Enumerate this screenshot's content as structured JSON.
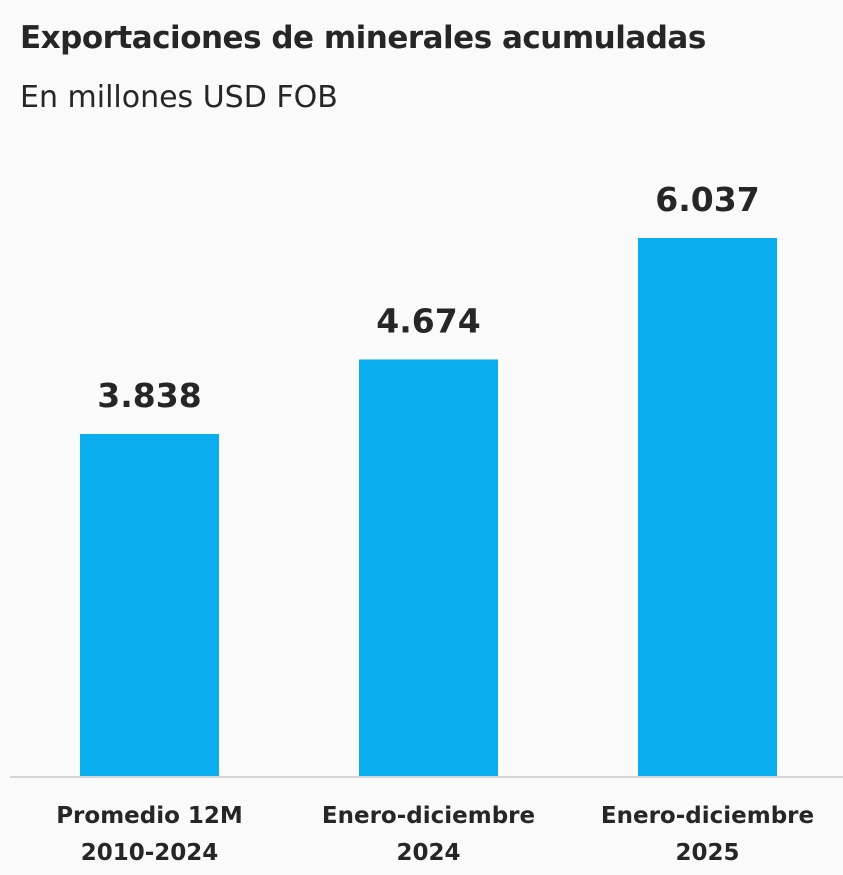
{
  "chart_data": {
    "type": "bar",
    "title": "Exportaciones de minerales acumuladas",
    "subtitle": "En millones USD FOB",
    "categories": [
      [
        "Promedio 12M",
        "2010-2024"
      ],
      [
        "Enero-diciembre",
        "2024"
      ],
      [
        "Enero-diciembre",
        "2025"
      ]
    ],
    "values": [
      3838,
      4674,
      6037
    ],
    "value_labels": [
      "3.838",
      "4.674",
      "6.037"
    ],
    "ylim": [
      0,
      6037
    ],
    "grid": false,
    "bar_color": "#0aaeef",
    "baseline_color": "#d4d4d4"
  }
}
